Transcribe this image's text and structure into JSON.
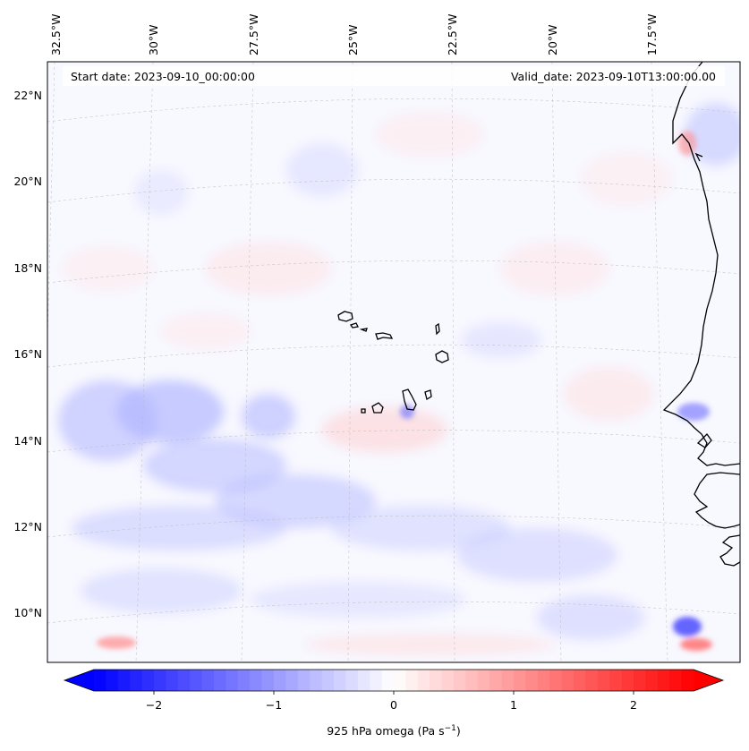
{
  "annotations": {
    "start_date": "Start date: 2023-09-10_00:00:00",
    "valid_date": "Valid_date: 2023-09-10T13:00:00.00"
  },
  "map": {
    "projection": "lambert-conformal",
    "lon_range": [
      -33,
      -15
    ],
    "lat_range": [
      9,
      22.8
    ],
    "lon_ticks": [
      "32.5°W",
      "30°W",
      "27.5°W",
      "25°W",
      "22.5°W",
      "20°W",
      "17.5°W"
    ],
    "lat_ticks": [
      "22°N",
      "20°N",
      "18°N",
      "16°N",
      "14°N",
      "12°N",
      "10°N"
    ],
    "field": "925 hPa omega",
    "gridlines": true,
    "coastlines": [
      "West Africa coast (Senegal, Gambia, Guinea-Bissau, Mauritania)",
      "Cape Verde islands"
    ]
  },
  "colorbar": {
    "label": "925 hPa omega (Pa s$^{-1}$)",
    "label_main": "925 hPa omega (Pa s",
    "label_sup": "−1",
    "label_end": ")",
    "ticks": [
      "−2",
      "−1",
      "0",
      "1",
      "2"
    ],
    "tick_values": [
      -2,
      -1,
      0,
      1,
      2
    ],
    "range": [
      -2.5,
      2.5
    ],
    "colormap": "bwr",
    "extend": "both",
    "colors": {
      "negative": "#0000ff",
      "zero": "#ffffff",
      "positive": "#ff0000"
    }
  }
}
